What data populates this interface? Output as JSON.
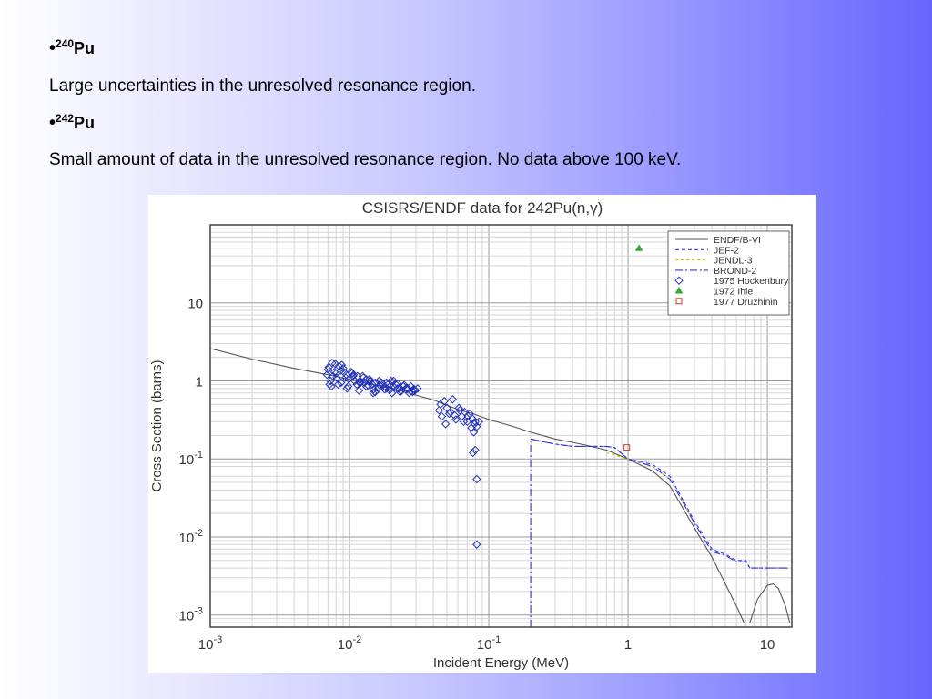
{
  "slide": {
    "items": [
      {
        "bullet_char": "•",
        "mass": "240",
        "element": "Pu",
        "note": "Large uncertainties in the unresolved resonance region."
      },
      {
        "bullet_char": "•",
        "mass": "242",
        "element": "Pu",
        "note": "Small amount of data in the unresolved resonance region. No data above 100 keV."
      }
    ]
  },
  "chart_data": {
    "type": "line",
    "title": "CSISRS/ENDF data for 242Pu(n,γ)",
    "xlabel": "Incident Energy (MeV)",
    "ylabel": "Cross Section (barns)",
    "x_scale": "log",
    "y_scale": "log",
    "xlim": [
      0.001,
      15
    ],
    "ylim": [
      0.0007,
      100
    ],
    "grid": true,
    "legend_position": "top-right",
    "x_ticks": [
      {
        "base": "10",
        "exp": "-3"
      },
      {
        "base": "10",
        "exp": "-2"
      },
      {
        "base": "10",
        "exp": "-1"
      },
      {
        "base": "1",
        "exp": ""
      },
      {
        "base": "10",
        "exp": ""
      }
    ],
    "y_ticks": [
      {
        "base": "10",
        "exp": "-3"
      },
      {
        "base": "10",
        "exp": "-2"
      },
      {
        "base": "10",
        "exp": "-1"
      },
      {
        "base": "1",
        "exp": ""
      },
      {
        "base": "10",
        "exp": ""
      }
    ],
    "series": [
      {
        "name": "ENDF/B-VI",
        "kind": "line",
        "color": "#555555",
        "dash": "",
        "x": [
          0.001,
          0.002,
          0.004,
          0.007,
          0.01,
          0.02,
          0.04,
          0.06,
          0.08,
          0.1,
          0.15,
          0.2,
          0.3,
          0.5,
          0.7,
          1.0,
          1.5,
          2.0,
          3.0,
          4.0,
          5.0,
          6.0,
          6.8
        ],
        "y": [
          2.6,
          1.9,
          1.45,
          1.2,
          1.05,
          0.8,
          0.57,
          0.43,
          0.37,
          0.32,
          0.26,
          0.22,
          0.18,
          0.15,
          0.13,
          0.1,
          0.07,
          0.045,
          0.013,
          0.0055,
          0.0025,
          0.0013,
          0.0008
        ]
      },
      {
        "name": "ENDF/B-VI",
        "kind": "line",
        "color": "#555555",
        "dash": "",
        "x": [
          7.5,
          8.5,
          10.0,
          11.0,
          12.0,
          13.5,
          14.5
        ],
        "y": [
          0.0008,
          0.0016,
          0.0024,
          0.0025,
          0.0022,
          0.0013,
          0.0008
        ]
      },
      {
        "name": "JEF-2",
        "kind": "line",
        "color": "#3333ff",
        "dash": "4,3",
        "x": [
          0.2,
          0.25,
          0.3,
          0.4,
          0.5,
          0.6,
          0.7,
          0.8,
          1.0,
          1.5,
          2.0,
          3.0,
          4.0,
          5.0,
          6.0,
          7.0,
          7.5,
          8.0,
          10.0,
          14.0
        ],
        "y": [
          0.18,
          0.165,
          0.155,
          0.145,
          0.145,
          0.145,
          0.145,
          0.14,
          0.1,
          0.085,
          0.06,
          0.016,
          0.007,
          0.006,
          0.005,
          0.005,
          0.004,
          0.004,
          0.004,
          0.004
        ]
      },
      {
        "name": "JENDL-3",
        "kind": "line",
        "color": "#cccc00",
        "dash": "3,3",
        "x": [
          0.7,
          1.0,
          1.5,
          2.0,
          3.0
        ],
        "y": [
          0.12,
          0.1,
          0.08,
          0.055,
          0.015
        ]
      },
      {
        "name": "BROND-2",
        "kind": "line",
        "color": "#3333cc",
        "dash": "8,3,2,3",
        "x": [
          0.2,
          0.2,
          0.25,
          0.3,
          0.4,
          0.5,
          0.6,
          0.7,
          0.8,
          1.0,
          1.5,
          2.0,
          3.0,
          4.0,
          5.0,
          6.0,
          7.0,
          7.5,
          8.0,
          10.0,
          14.0
        ],
        "y": [
          0.0007,
          0.18,
          0.165,
          0.155,
          0.145,
          0.145,
          0.145,
          0.145,
          0.14,
          0.1,
          0.08,
          0.055,
          0.015,
          0.0065,
          0.0058,
          0.0048,
          0.0048,
          0.004,
          0.004,
          0.004,
          0.004
        ]
      },
      {
        "name": "1975 Hockenbury",
        "kind": "marker",
        "marker": "diamond",
        "color": "#2233bb",
        "x": [
          0.0069,
          0.0071,
          0.0073,
          0.0075,
          0.0078,
          0.0081,
          0.0084,
          0.0087,
          0.0091,
          0.0095,
          0.0099,
          0.0104,
          0.0109,
          0.0114,
          0.012,
          0.0126,
          0.0132,
          0.0139,
          0.0146,
          0.0153,
          0.0161,
          0.017,
          0.0179,
          0.0189,
          0.0199,
          0.021,
          0.0222,
          0.0234,
          0.0247,
          0.0261,
          0.0276,
          0.0292,
          0.0308,
          0.007,
          0.0076,
          0.0083,
          0.009,
          0.0098,
          0.0107,
          0.0117,
          0.0128,
          0.014,
          0.0153,
          0.0168,
          0.0184,
          0.0202,
          0.0222,
          0.0244,
          0.0268,
          0.0294,
          0.0072,
          0.0079,
          0.0086,
          0.0094,
          0.0103,
          0.0113,
          0.0124,
          0.0136,
          0.0149,
          0.0163,
          0.0179,
          0.0196,
          0.0215,
          0.0236,
          0.0259,
          0.0284,
          0.0074,
          0.008,
          0.0088,
          0.0096,
          0.0106,
          0.0118,
          0.0132,
          0.0148,
          0.0165,
          0.0185,
          0.0207,
          0.0231,
          0.0258,
          0.0288,
          0.044,
          0.046,
          0.048,
          0.05,
          0.052,
          0.055,
          0.058,
          0.061,
          0.064,
          0.067,
          0.07,
          0.073,
          0.076,
          0.079,
          0.082,
          0.045,
          0.049,
          0.053,
          0.057,
          0.062,
          0.066,
          0.071,
          0.075,
          0.078,
          0.08,
          0.077,
          0.08,
          0.082,
          0.085,
          0.082
        ],
        "y": [
          1.2,
          1.5,
          1.0,
          1.7,
          1.3,
          1.1,
          1.55,
          0.95,
          1.3,
          1.2,
          1.05,
          1.25,
          1.0,
          1.15,
          0.95,
          1.1,
          0.85,
          1.05,
          0.9,
          0.95,
          0.8,
          0.95,
          0.78,
          0.9,
          1.0,
          0.82,
          0.92,
          0.75,
          0.88,
          0.8,
          0.85,
          0.78,
          0.8,
          1.4,
          1.15,
          0.9,
          1.45,
          0.85,
          1.2,
          0.75,
          0.95,
          1.0,
          0.72,
          0.85,
          0.95,
          0.7,
          0.8,
          0.85,
          0.7,
          0.75,
          0.9,
          1.65,
          1.35,
          1.1,
          1.3,
          0.9,
          1.15,
          0.88,
          0.78,
          1.0,
          0.85,
          0.78,
          0.9,
          0.75,
          0.8,
          0.72,
          0.85,
          1.25,
          1.6,
          0.8,
          1.15,
          0.95,
          1.05,
          0.7,
          0.88,
          0.8,
          1.0,
          0.72,
          0.82,
          0.78,
          0.42,
          0.35,
          0.55,
          0.45,
          0.38,
          0.58,
          0.32,
          0.45,
          0.35,
          0.4,
          0.3,
          0.38,
          0.33,
          0.28,
          0.26,
          0.5,
          0.28,
          0.4,
          0.36,
          0.42,
          0.3,
          0.35,
          0.25,
          0.22,
          0.3,
          0.12,
          0.13,
          0.055,
          0.3,
          0.008
        ]
      },
      {
        "name": "1972 Ihle",
        "kind": "marker",
        "marker": "triangle",
        "color": "#33aa33",
        "x": [
          1.2
        ],
        "y": [
          50
        ]
      },
      {
        "name": "1977 Druzhinin",
        "kind": "marker",
        "marker": "square",
        "color": "#cc3322",
        "x": [
          0.98
        ],
        "y": [
          0.14
        ]
      }
    ]
  }
}
